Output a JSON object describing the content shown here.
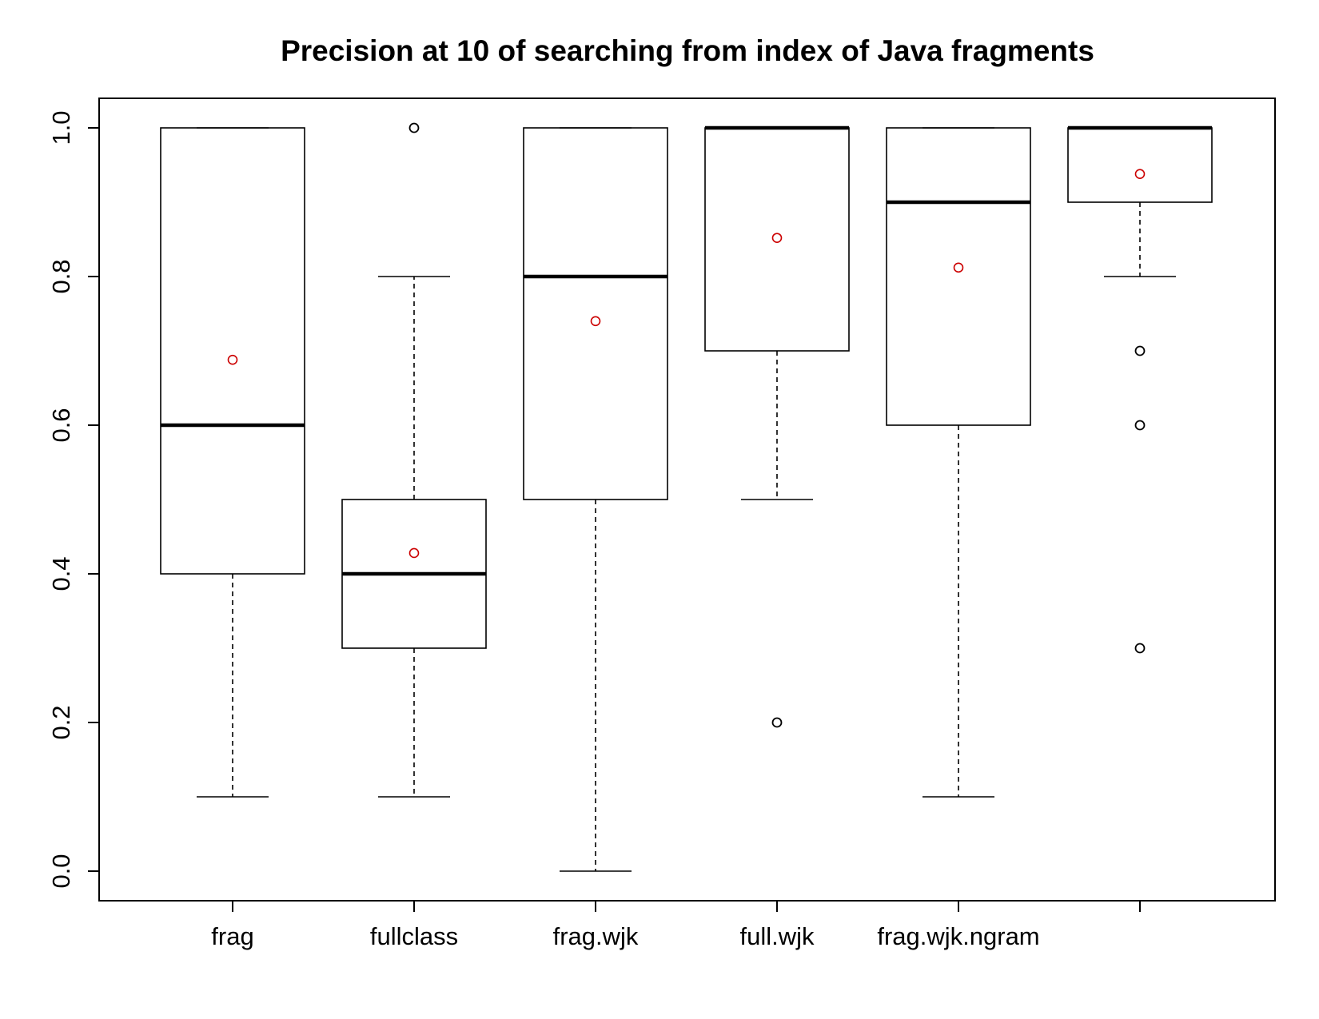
{
  "chart_data": {
    "type": "boxplot",
    "title": "Precision at 10 of searching from index of Java fragments",
    "xlabel": "",
    "ylabel": "",
    "ylim": [
      0.0,
      1.0
    ],
    "y_ticks": [
      "0.0",
      "0.2",
      "0.4",
      "0.6",
      "0.8",
      "1.0"
    ],
    "categories": [
      "frag",
      "fullclass",
      "frag.wjk",
      "full.wjk",
      "frag.wjk.ngram",
      ""
    ],
    "boxes": [
      {
        "whisker_low": 0.1,
        "q1": 0.4,
        "median": 0.6,
        "q3": 1.0,
        "whisker_high": 1.0,
        "mean": 0.688,
        "outliers": []
      },
      {
        "whisker_low": 0.1,
        "q1": 0.3,
        "median": 0.4,
        "q3": 0.5,
        "whisker_high": 0.8,
        "mean": 0.428,
        "outliers": [
          1.0
        ]
      },
      {
        "whisker_low": 0.0,
        "q1": 0.5,
        "median": 0.8,
        "q3": 1.0,
        "whisker_high": 1.0,
        "mean": 0.74,
        "outliers": []
      },
      {
        "whisker_low": 0.5,
        "q1": 0.7,
        "median": 1.0,
        "q3": 1.0,
        "whisker_high": 1.0,
        "mean": 0.852,
        "outliers": [
          0.2
        ]
      },
      {
        "whisker_low": 0.1,
        "q1": 0.6,
        "median": 0.9,
        "q3": 1.0,
        "whisker_high": 1.0,
        "mean": 0.812,
        "outliers": []
      },
      {
        "whisker_low": 0.8,
        "q1": 0.9,
        "median": 1.0,
        "q3": 1.0,
        "whisker_high": 1.0,
        "mean": 0.938,
        "outliers": [
          0.7,
          0.6,
          0.3
        ]
      }
    ],
    "colors": {
      "box": "#000000",
      "mean_marker": "#cc0000",
      "outlier": "#000000"
    },
    "grid": false,
    "legend": "none"
  }
}
